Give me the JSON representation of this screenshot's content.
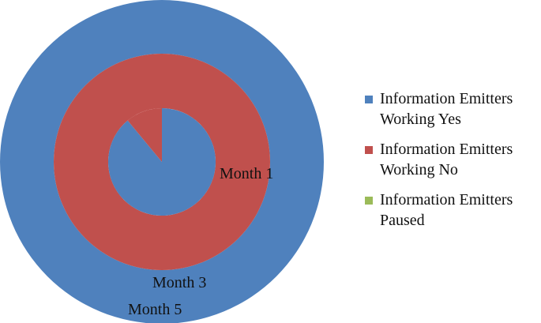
{
  "chart_data": {
    "type": "pie",
    "variant": "multi-ring-doughnut",
    "rings": [
      {
        "label": "Month 1",
        "values": [
          100,
          0,
          0
        ]
      },
      {
        "label": "Month 3",
        "values": [
          0,
          100,
          0
        ]
      },
      {
        "label": "Month 5",
        "values": [
          89,
          11,
          0
        ]
      }
    ],
    "series": [
      {
        "name": "Information Emitters Working Yes",
        "color": "#4F81BD"
      },
      {
        "name": "Information Emitters Working No",
        "color": "#C0504D"
      },
      {
        "name": "Information Emitters Paused",
        "color": "#9BBB59"
      }
    ],
    "legend": "right"
  }
}
